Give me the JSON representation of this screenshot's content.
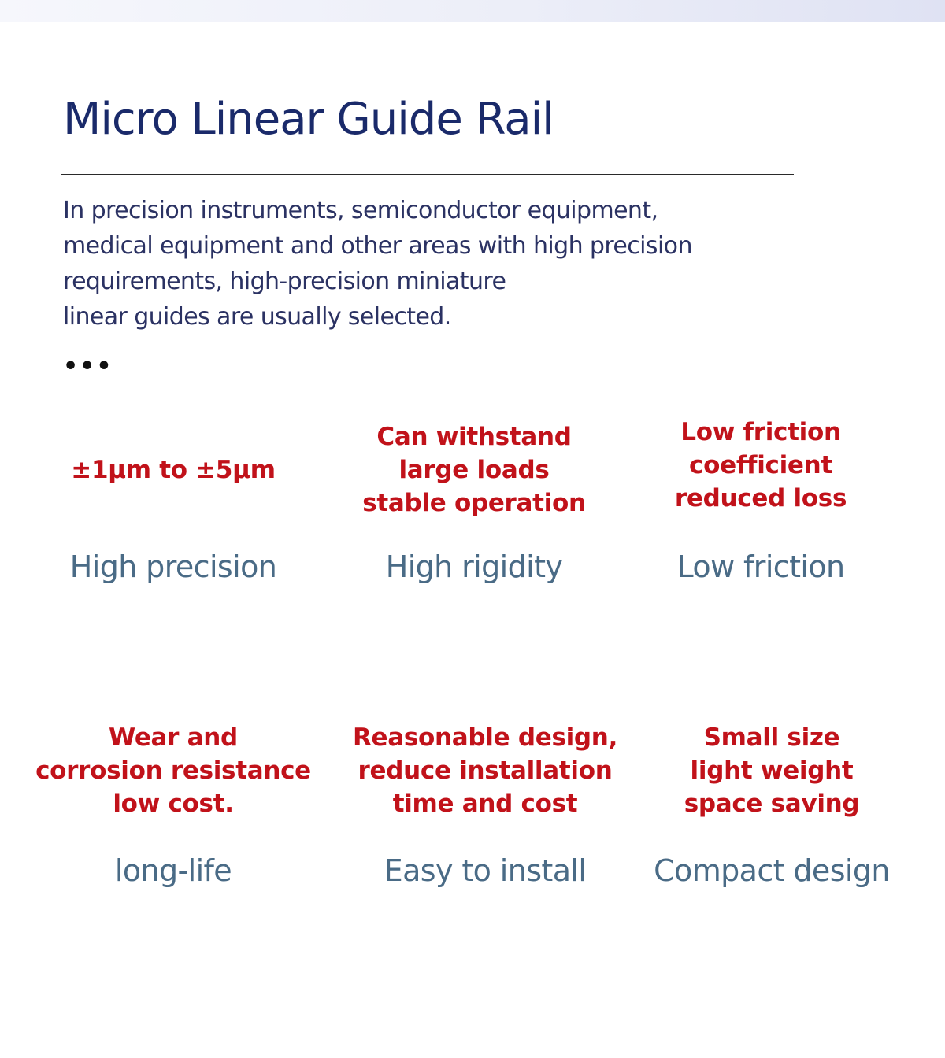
{
  "title": "Micro Linear Guide Rail",
  "intro": {
    "lines": [
      "In precision instruments, semiconductor equipment,",
      "medical equipment and other areas with high precision",
      "requirements, high-precision miniature",
      "linear guides are usually selected."
    ]
  },
  "ellipsis": "•••",
  "features": [
    {
      "description": [
        "±1μm to ±5μm"
      ],
      "name": "High precision"
    },
    {
      "description": [
        "Can withstand",
        "large loads",
        "stable operation"
      ],
      "name": "High rigidity"
    },
    {
      "description": [
        "Low friction",
        "coefficient",
        "reduced loss"
      ],
      "name": "Low friction"
    },
    {
      "description": [
        "Wear and",
        "corrosion resistance",
        "low cost."
      ],
      "name": "long-life"
    },
    {
      "description": [
        "Reasonable design,",
        "reduce installation",
        "time and cost"
      ],
      "name": "Easy to install"
    },
    {
      "description": [
        "Small size",
        "light weight",
        "space saving"
      ],
      "name": "Compact design"
    }
  ],
  "colors": {
    "title": "#1a2a6a",
    "intro_text": "#2b3263",
    "feature_description": "#c1121a",
    "feature_name": "#4a6b86"
  }
}
